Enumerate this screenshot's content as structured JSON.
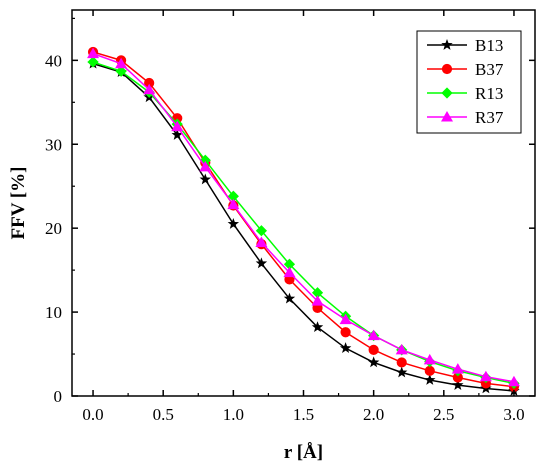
{
  "chart_data": {
    "type": "line",
    "xlabel": "r [Å]",
    "ylabel": "FFV [%]",
    "xlim": [
      -0.15,
      3.15
    ],
    "ylim": [
      0,
      46
    ],
    "x_ticks": [
      0.0,
      0.5,
      1.0,
      1.5,
      2.0,
      2.5,
      3.0
    ],
    "x_tick_labels": [
      "0.0",
      "0.5",
      "1.0",
      "1.5",
      "2.0",
      "2.5",
      "3.0"
    ],
    "y_ticks": [
      0,
      10,
      20,
      30,
      40
    ],
    "y_tick_labels": [
      "0",
      "10",
      "20",
      "30",
      "40"
    ],
    "grid": false,
    "legend_position": "top-right",
    "x": [
      0.0,
      0.2,
      0.4,
      0.6,
      0.8,
      1.0,
      1.2,
      1.4,
      1.6,
      1.8,
      2.0,
      2.2,
      2.4,
      2.6,
      2.8,
      3.0
    ],
    "series": [
      {
        "name": "B13",
        "color": "#000000",
        "marker": "star",
        "values": [
          39.6,
          38.6,
          35.6,
          31.1,
          25.8,
          20.5,
          15.8,
          11.6,
          8.2,
          5.7,
          4.0,
          2.8,
          1.9,
          1.3,
          0.9,
          0.6
        ]
      },
      {
        "name": "B37",
        "color": "#ff0000",
        "marker": "circle",
        "values": [
          41.0,
          40.0,
          37.3,
          33.1,
          27.8,
          22.7,
          18.1,
          13.9,
          10.5,
          7.6,
          5.5,
          4.0,
          3.0,
          2.2,
          1.5,
          1.1
        ]
      },
      {
        "name": "R13",
        "color": "#00ff00",
        "marker": "diamond",
        "values": [
          39.8,
          38.7,
          36.2,
          32.4,
          28.1,
          23.8,
          19.7,
          15.7,
          12.3,
          9.5,
          7.2,
          5.5,
          4.1,
          3.0,
          2.2,
          1.5
        ]
      },
      {
        "name": "R37",
        "color": "#ff00ff",
        "marker": "triangle",
        "values": [
          40.8,
          39.6,
          36.5,
          32.1,
          27.3,
          22.8,
          18.3,
          14.7,
          11.3,
          9.1,
          7.2,
          5.5,
          4.3,
          3.2,
          2.3,
          1.7
        ]
      }
    ]
  }
}
